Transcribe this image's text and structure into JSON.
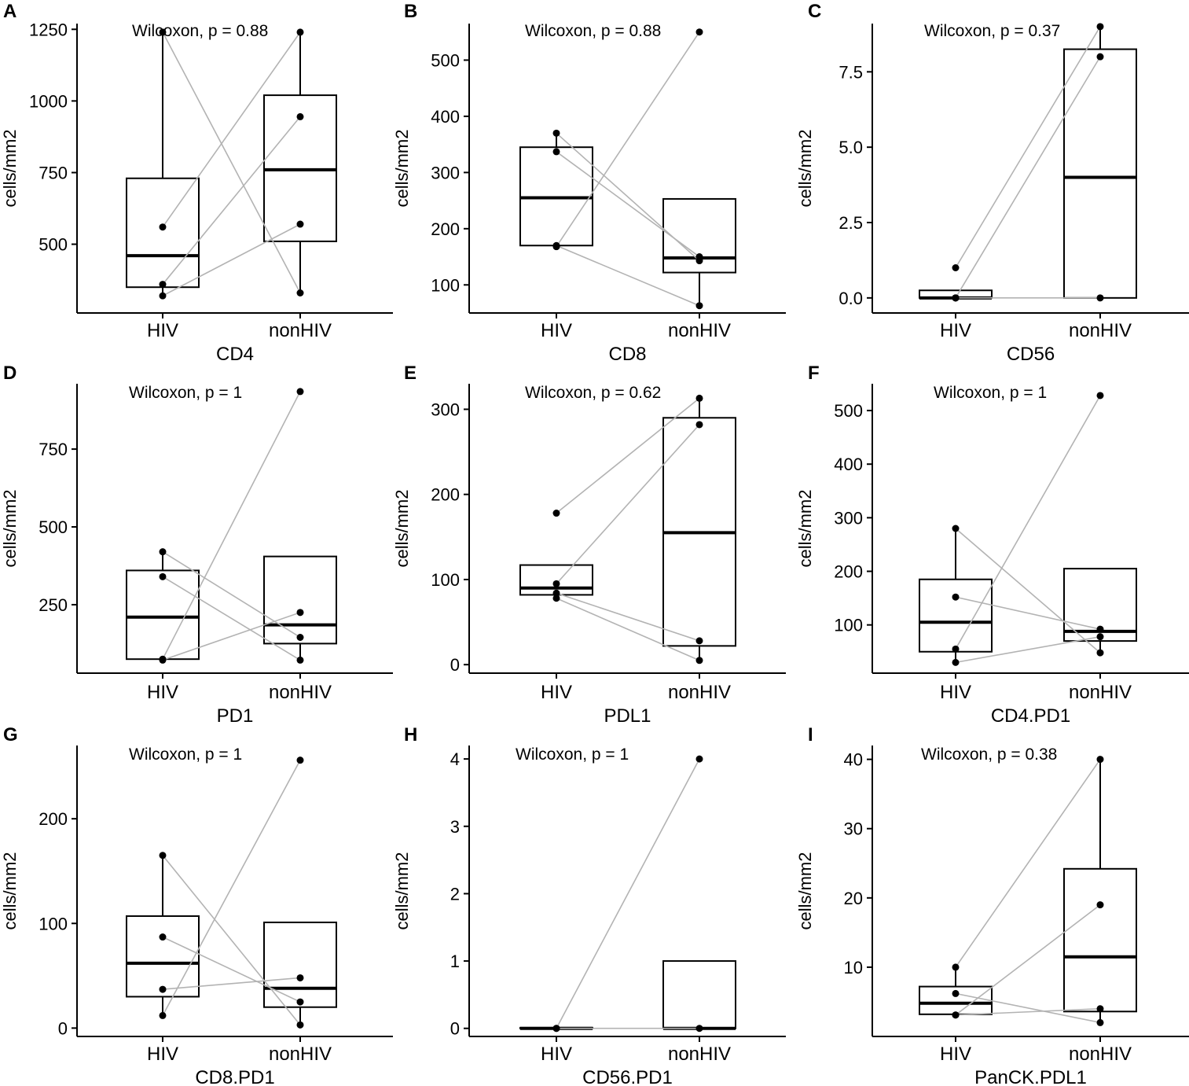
{
  "figure": {
    "ylabel": "cells/mm2",
    "categories": [
      "HIV",
      "nonHIV"
    ]
  },
  "chart_data": [
    {
      "type": "box",
      "panel": "A",
      "title": "CD4",
      "xlabel": "CD4",
      "ylabel": "cells/mm2",
      "categories": [
        "HIV",
        "nonHIV"
      ],
      "ylim": [
        260,
        1270
      ],
      "yticks": [
        500,
        750,
        1000,
        1250
      ],
      "annotation": "Wilcoxon, p = 0.88",
      "boxes": [
        {
          "whislo": 320,
          "q1": 350,
          "med": 460,
          "q3": 730,
          "whishi": 1240
        },
        {
          "whislo": 330,
          "q1": 510,
          "med": 760,
          "q3": 1020,
          "whishi": 1240
        }
      ],
      "points": [
        [
          1240,
          330
        ],
        [
          560,
          1240
        ],
        [
          360,
          945
        ],
        [
          320,
          570
        ]
      ]
    },
    {
      "type": "box",
      "panel": "B",
      "title": "CD8",
      "xlabel": "CD8",
      "ylabel": "cells/mm2",
      "categories": [
        "HIV",
        "nonHIV"
      ],
      "ylim": [
        50,
        565
      ],
      "yticks": [
        100,
        200,
        300,
        400,
        500
      ],
      "annotation": "Wilcoxon, p = 0.88",
      "boxes": [
        {
          "whislo": 168,
          "q1": 170,
          "med": 255,
          "q3": 345,
          "whishi": 370
        },
        {
          "whislo": 63,
          "q1": 122,
          "med": 148,
          "q3": 253,
          "whishi": 253
        }
      ],
      "points": [
        [
          370,
          143
        ],
        [
          337,
          150
        ],
        [
          168,
          550
        ],
        [
          170,
          63
        ]
      ]
    },
    {
      "type": "box",
      "panel": "C",
      "title": "CD56",
      "xlabel": "CD56",
      "ylabel": "cells/mm2",
      "categories": [
        "HIV",
        "nonHIV"
      ],
      "ylim": [
        -0.5,
        9.1
      ],
      "yticks": [
        0,
        2.5,
        5,
        7.5
      ],
      "ytick_labels": [
        "0.0",
        "2.5",
        "5.0",
        "7.5"
      ],
      "annotation": "Wilcoxon, p = 0.37",
      "boxes": [
        {
          "whislo": 0,
          "q1": 0,
          "med": 0,
          "q3": 0.25,
          "whishi": 0.25
        },
        {
          "whislo": 0,
          "q1": 0,
          "med": 4,
          "q3": 8.25,
          "whishi": 9
        }
      ],
      "points": [
        [
          1,
          9
        ],
        [
          0,
          8
        ],
        [
          0,
          0
        ]
      ],
      "extra_points": [
        [
          0,
          0
        ],
        [
          0,
          0
        ]
      ]
    },
    {
      "type": "box",
      "panel": "D",
      "title": "PD1",
      "xlabel": "PD1",
      "ylabel": "cells/mm2",
      "categories": [
        "HIV",
        "nonHIV"
      ],
      "ylim": [
        30,
        960
      ],
      "yticks": [
        250,
        500,
        750
      ],
      "annotation": "Wilcoxon, p = 1",
      "boxes": [
        {
          "whislo": 72,
          "q1": 75,
          "med": 210,
          "q3": 360,
          "whishi": 420
        },
        {
          "whislo": 72,
          "q1": 125,
          "med": 185,
          "q3": 405,
          "whishi": 405
        }
      ],
      "points": [
        [
          420,
          145
        ],
        [
          340,
          72
        ],
        [
          75,
          935
        ],
        [
          72,
          225
        ]
      ]
    },
    {
      "type": "box",
      "panel": "E",
      "title": "PDL1",
      "xlabel": "PDL1",
      "ylabel": "cells/mm2",
      "categories": [
        "HIV",
        "nonHIV"
      ],
      "ylim": [
        -10,
        330
      ],
      "yticks": [
        0,
        100,
        200,
        300
      ],
      "annotation": "Wilcoxon, p = 0.62",
      "boxes": [
        {
          "whislo": 76,
          "q1": 82,
          "med": 90,
          "q3": 117,
          "whishi": 117
        },
        {
          "whislo": 5,
          "q1": 22,
          "med": 155,
          "q3": 290,
          "whishi": 313
        }
      ],
      "points": [
        [
          178,
          313
        ],
        [
          95,
          282
        ],
        [
          84,
          28
        ],
        [
          78,
          5
        ]
      ]
    },
    {
      "type": "box",
      "panel": "F",
      "title": "CD4.PD1",
      "xlabel": "CD4.PD1",
      "ylabel": "cells/mm2",
      "categories": [
        "HIV",
        "nonHIV"
      ],
      "ylim": [
        10,
        550
      ],
      "yticks": [
        100,
        200,
        300,
        400,
        500
      ],
      "annotation": "Wilcoxon, p = 1",
      "boxes": [
        {
          "whislo": 30,
          "q1": 50,
          "med": 105,
          "q3": 185,
          "whishi": 280
        },
        {
          "whislo": 45,
          "q1": 70,
          "med": 88,
          "q3": 205,
          "whishi": 205
        }
      ],
      "points": [
        [
          280,
          48
        ],
        [
          152,
          92
        ],
        [
          55,
          528
        ],
        [
          30,
          78
        ]
      ]
    },
    {
      "type": "box",
      "panel": "G",
      "title": "CD8.PD1",
      "xlabel": "CD8.PD1",
      "ylabel": "cells/mm2",
      "categories": [
        "HIV",
        "nonHIV"
      ],
      "ylim": [
        -8,
        270
      ],
      "yticks": [
        0,
        100,
        200
      ],
      "annotation": "Wilcoxon, p = 1",
      "boxes": [
        {
          "whislo": 12,
          "q1": 30,
          "med": 62,
          "q3": 107,
          "whishi": 165
        },
        {
          "whislo": 3,
          "q1": 20,
          "med": 38,
          "q3": 101,
          "whishi": 101
        }
      ],
      "points": [
        [
          165,
          3
        ],
        [
          87,
          25
        ],
        [
          37,
          48
        ],
        [
          12,
          256
        ]
      ]
    },
    {
      "type": "box",
      "panel": "H",
      "title": "CD56.PD1",
      "xlabel": "CD56.PD1",
      "ylabel": "cells/mm2",
      "categories": [
        "HIV",
        "nonHIV"
      ],
      "ylim": [
        -0.12,
        4.2
      ],
      "yticks": [
        0,
        1,
        2,
        3,
        4
      ],
      "annotation": "Wilcoxon, p = 1",
      "boxes": [
        {
          "whislo": 0,
          "q1": 0,
          "med": 0,
          "q3": 0.01,
          "whishi": 0.01
        },
        {
          "whislo": 0,
          "q1": 0,
          "med": 0,
          "q3": 1,
          "whishi": 1
        }
      ],
      "points": [
        [
          0,
          4
        ],
        [
          0,
          0
        ]
      ]
    },
    {
      "type": "box",
      "panel": "I",
      "title": "PanCK.PDL1",
      "xlabel": "PanCK.PDL1",
      "ylabel": "cells/mm2",
      "categories": [
        "HIV",
        "nonHIV"
      ],
      "ylim": [
        0,
        42
      ],
      "yticks": [
        10,
        20,
        30,
        40
      ],
      "annotation": "Wilcoxon, p = 0.38",
      "boxes": [
        {
          "whislo": 3,
          "q1": 3.2,
          "med": 4.8,
          "q3": 7.2,
          "whishi": 10
        },
        {
          "whislo": 2,
          "q1": 3.6,
          "med": 11.5,
          "q3": 24.2,
          "whishi": 40
        }
      ],
      "points": [
        [
          10,
          40
        ],
        [
          6.2,
          2
        ],
        [
          3.1,
          19
        ],
        [
          3.1,
          4
        ]
      ]
    }
  ]
}
